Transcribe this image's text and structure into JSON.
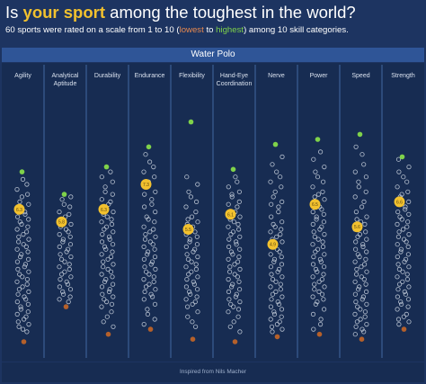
{
  "header": {
    "title_pre": "Is ",
    "title_hl": "your sport",
    "title_post": " among the toughest in the world?",
    "subtitle_pre": "60 sports were rated on a scale from 1 to 10 (",
    "subtitle_low": "lowest",
    "subtitle_mid": " to ",
    "subtitle_high": "highest",
    "subtitle_post": ") among 10 skill categories."
  },
  "selected_sport": "Water Polo",
  "footer": "Inspired from Nils Macher",
  "colors": {
    "background": "#1d3461",
    "panel": "#172c52",
    "band": "#2f5597",
    "dot": "#c9d1de",
    "highlight": "#f2c12e",
    "highest": "#7fd24a",
    "lowest": "#b5602a"
  },
  "chart_data": {
    "type": "scatter",
    "scale": [
      1,
      10
    ],
    "categories": [
      "Agility",
      "Analytical Aptitude",
      "Durability",
      "Endurance",
      "Flexibility",
      "Hand-Eye Coordination",
      "Nerve",
      "Power",
      "Speed",
      "Strength"
    ],
    "highlight_sport": "Water Polo",
    "highlight_values": [
      6.3,
      5.8,
      6.3,
      7.3,
      5.5,
      6.1,
      4.9,
      6.5,
      5.6,
      6.6
    ],
    "highlight_labels": [
      "6.3",
      "5.8",
      "6.3",
      "7.3",
      "5.5",
      "6.1",
      "4.9",
      "6.5",
      "5.6",
      "6.6"
    ],
    "max_values": [
      7.8,
      6.9,
      8.0,
      8.8,
      9.8,
      7.9,
      8.9,
      9.1,
      9.3,
      8.4
    ],
    "min_values": [
      1.0,
      2.4,
      1.3,
      1.5,
      1.1,
      1.0,
      1.2,
      1.3,
      1.1,
      1.5
    ],
    "distribution_values": [
      [
        7.5,
        7.3,
        7.1,
        6.9,
        6.8,
        6.6,
        6.5,
        6.4,
        6.2,
        6.1,
        6.0,
        5.9,
        5.8,
        5.7,
        5.6,
        5.5,
        5.4,
        5.3,
        5.2,
        5.1,
        5.0,
        4.9,
        4.8,
        4.7,
        4.6,
        4.5,
        4.4,
        4.3,
        4.2,
        4.1,
        4.0,
        3.9,
        3.8,
        3.7,
        3.6,
        3.5,
        3.4,
        3.3,
        3.2,
        3.1,
        3.0,
        2.9,
        2.8,
        2.7,
        2.6,
        2.5,
        2.4,
        2.3,
        2.2,
        2.1,
        2.0,
        1.9,
        1.8,
        1.7,
        1.6,
        1.5,
        1.4
      ],
      [
        6.8,
        6.7,
        6.5,
        6.4,
        6.2,
        6.1,
        6.0,
        5.9,
        5.7,
        5.6,
        5.5,
        5.4,
        5.3,
        5.2,
        5.1,
        5.0,
        4.9,
        4.8,
        4.7,
        4.6,
        4.5,
        4.4,
        4.3,
        4.2,
        4.1,
        4.0,
        3.9,
        3.8,
        3.7,
        3.6,
        3.5,
        3.4,
        3.3,
        3.2,
        3.1,
        3.0,
        2.9,
        2.8,
        2.7,
        2.6
      ],
      [
        7.8,
        7.6,
        7.4,
        7.2,
        7.0,
        6.9,
        6.7,
        6.6,
        6.5,
        6.4,
        6.2,
        6.1,
        6.0,
        5.9,
        5.8,
        5.7,
        5.6,
        5.5,
        5.4,
        5.3,
        5.2,
        5.1,
        5.0,
        4.9,
        4.8,
        4.7,
        4.6,
        4.5,
        4.4,
        4.3,
        4.2,
        4.1,
        4.0,
        3.9,
        3.8,
        3.7,
        3.6,
        3.5,
        3.4,
        3.3,
        3.2,
        3.1,
        3.0,
        2.9,
        2.8,
        2.7,
        2.6,
        2.5,
        2.4,
        2.2,
        2.0,
        1.8,
        1.6
      ],
      [
        8.5,
        8.2,
        8.0,
        7.8,
        7.6,
        7.4,
        7.2,
        7.0,
        6.9,
        6.7,
        6.5,
        6.4,
        6.2,
        6.0,
        5.9,
        5.8,
        5.6,
        5.5,
        5.4,
        5.3,
        5.2,
        5.1,
        5.0,
        4.9,
        4.8,
        4.7,
        4.6,
        4.5,
        4.4,
        4.3,
        4.2,
        4.1,
        4.0,
        3.9,
        3.8,
        3.7,
        3.6,
        3.5,
        3.4,
        3.3,
        3.2,
        3.1,
        3.0,
        2.9,
        2.8,
        2.7,
        2.5,
        2.3,
        2.1,
        1.9,
        1.7
      ],
      [
        7.6,
        7.3,
        7.0,
        6.8,
        6.6,
        6.4,
        6.2,
        6.0,
        5.9,
        5.8,
        5.7,
        5.6,
        5.4,
        5.3,
        5.2,
        5.1,
        5.0,
        4.9,
        4.8,
        4.7,
        4.6,
        4.5,
        4.4,
        4.3,
        4.2,
        4.1,
        4.0,
        3.9,
        3.8,
        3.7,
        3.6,
        3.5,
        3.4,
        3.3,
        3.2,
        3.1,
        3.0,
        2.9,
        2.8,
        2.7,
        2.6,
        2.5,
        2.4,
        2.2,
        2.0,
        1.8,
        1.6
      ],
      [
        7.6,
        7.4,
        7.2,
        7.0,
        6.9,
        6.8,
        6.6,
        6.5,
        6.4,
        6.2,
        6.1,
        6.0,
        5.9,
        5.8,
        5.7,
        5.6,
        5.5,
        5.4,
        5.3,
        5.2,
        5.1,
        5.0,
        4.9,
        4.8,
        4.7,
        4.6,
        4.5,
        4.4,
        4.3,
        4.2,
        4.1,
        4.0,
        3.9,
        3.8,
        3.7,
        3.6,
        3.5,
        3.4,
        3.3,
        3.2,
        3.1,
        3.0,
        2.9,
        2.8,
        2.7,
        2.6,
        2.5,
        2.4,
        2.3,
        2.2,
        2.0,
        1.8,
        1.6,
        1.4
      ],
      [
        8.4,
        8.1,
        7.8,
        7.6,
        7.4,
        7.2,
        7.0,
        6.8,
        6.6,
        6.5,
        6.4,
        6.2,
        6.0,
        5.8,
        5.7,
        5.6,
        5.5,
        5.4,
        5.3,
        5.2,
        5.1,
        5.0,
        4.8,
        4.7,
        4.6,
        4.5,
        4.4,
        4.3,
        4.2,
        4.1,
        4.0,
        3.9,
        3.8,
        3.7,
        3.6,
        3.5,
        3.4,
        3.3,
        3.2,
        3.1,
        3.0,
        2.9,
        2.8,
        2.7,
        2.6,
        2.5,
        2.4,
        2.3,
        2.2,
        2.1,
        2.0,
        1.9,
        1.8,
        1.7,
        1.6,
        1.5,
        1.4
      ],
      [
        8.6,
        8.3,
        8.0,
        7.8,
        7.6,
        7.4,
        7.2,
        7.0,
        6.9,
        6.8,
        6.7,
        6.6,
        6.4,
        6.3,
        6.2,
        6.1,
        6.0,
        5.9,
        5.8,
        5.7,
        5.6,
        5.5,
        5.4,
        5.3,
        5.2,
        5.1,
        5.0,
        4.9,
        4.8,
        4.7,
        4.6,
        4.5,
        4.4,
        4.3,
        4.2,
        4.1,
        4.0,
        3.9,
        3.8,
        3.7,
        3.6,
        3.5,
        3.4,
        3.3,
        3.2,
        3.1,
        3.0,
        2.9,
        2.8,
        2.7,
        2.6,
        2.5,
        2.3,
        2.1,
        1.9,
        1.7,
        1.5
      ],
      [
        8.8,
        8.5,
        8.1,
        7.8,
        7.6,
        7.4,
        7.2,
        7.0,
        6.8,
        6.6,
        6.4,
        6.2,
        6.0,
        5.9,
        5.8,
        5.7,
        5.5,
        5.4,
        5.3,
        5.2,
        5.1,
        5.0,
        4.9,
        4.8,
        4.7,
        4.6,
        4.5,
        4.4,
        4.3,
        4.2,
        4.1,
        4.0,
        3.9,
        3.8,
        3.7,
        3.6,
        3.5,
        3.4,
        3.3,
        3.2,
        3.1,
        3.0,
        2.9,
        2.8,
        2.7,
        2.6,
        2.5,
        2.4,
        2.3,
        2.2,
        2.1,
        2.0,
        1.9,
        1.8,
        1.7,
        1.6,
        1.5,
        1.4,
        1.3
      ],
      [
        8.3,
        8.0,
        7.8,
        7.6,
        7.4,
        7.2,
        7.0,
        6.9,
        6.8,
        6.6,
        6.5,
        6.4,
        6.3,
        6.2,
        6.1,
        6.0,
        5.9,
        5.8,
        5.7,
        5.6,
        5.5,
        5.4,
        5.3,
        5.2,
        5.1,
        5.0,
        4.9,
        4.8,
        4.7,
        4.6,
        4.5,
        4.4,
        4.3,
        4.2,
        4.1,
        4.0,
        3.9,
        3.8,
        3.7,
        3.6,
        3.5,
        3.4,
        3.3,
        3.2,
        3.1,
        3.0,
        2.9,
        2.8,
        2.7,
        2.6,
        2.5,
        2.4,
        2.3,
        2.1,
        2.0,
        1.9,
        1.8,
        1.7
      ]
    ]
  }
}
